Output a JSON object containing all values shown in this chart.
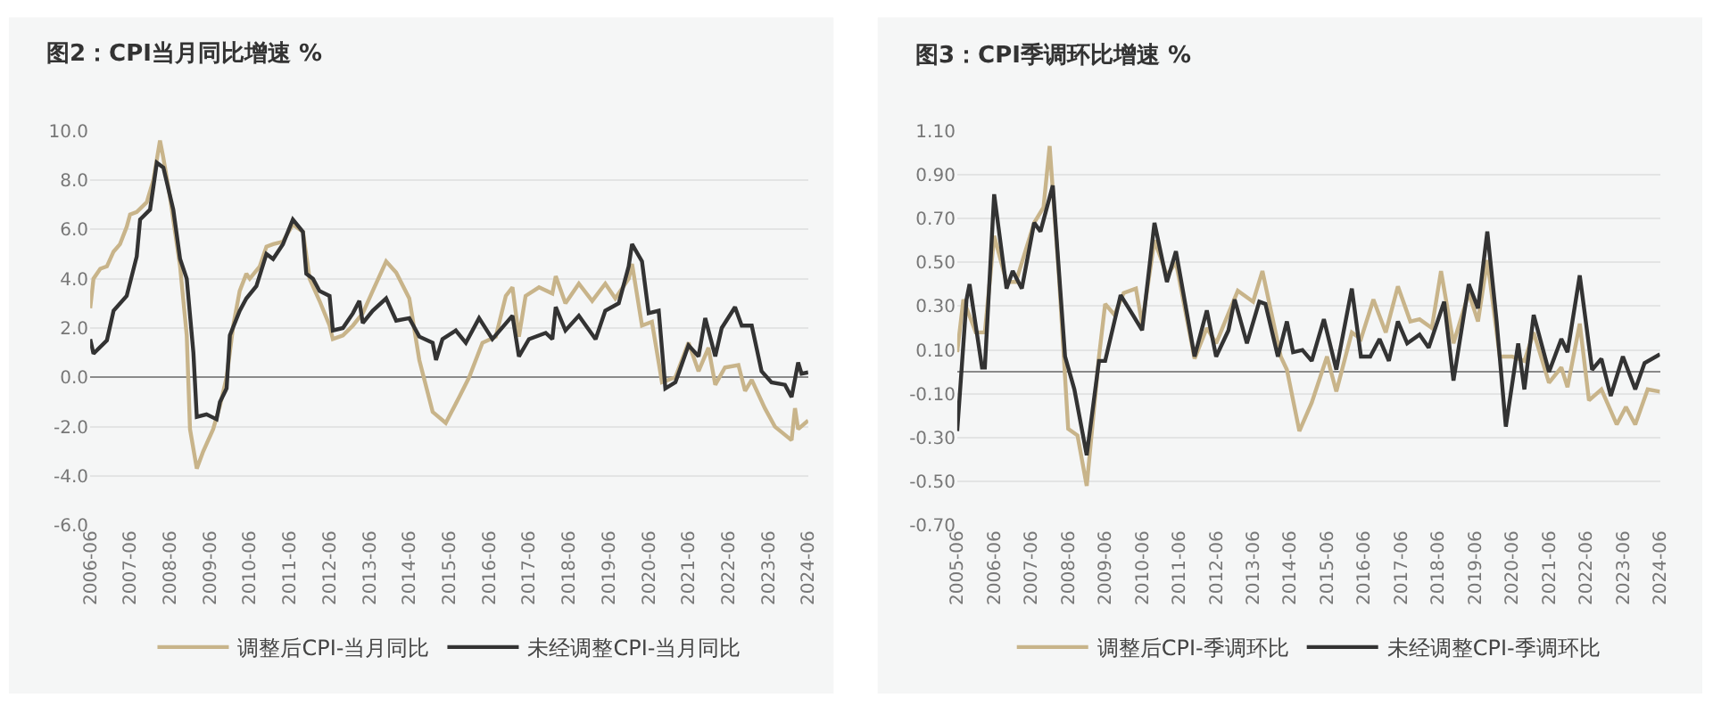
{
  "chart_data": [
    {
      "type": "line",
      "title": "图2：CPI当月同比增速 %",
      "legend": "bottom",
      "grid": "y",
      "marker": "none",
      "line_style": "solid",
      "xlim": [
        "2006-06",
        "2024-06"
      ],
      "ylim": [
        -6,
        10
      ],
      "xticks": [
        "2006-06",
        "2007-06",
        "2008-06",
        "2009-06",
        "2010-06",
        "2011-06",
        "2012-06",
        "2013-06",
        "2014-06",
        "2015-06",
        "2016-06",
        "2017-06",
        "2018-06",
        "2019-06",
        "2020-06",
        "2021-06",
        "2022-06",
        "2023-06",
        "2024-06"
      ],
      "yticks": [
        {
          "value": -6,
          "label": "-6.0"
        },
        {
          "value": -4,
          "label": "-4.0"
        },
        {
          "value": -2,
          "label": "-2.0"
        },
        {
          "value": 0,
          "label": "0.0"
        },
        {
          "value": 2,
          "label": "2.0"
        },
        {
          "value": 4,
          "label": "4.0"
        },
        {
          "value": 6,
          "label": "6.0"
        },
        {
          "value": 8,
          "label": "8.0"
        },
        {
          "value": 10,
          "label": "10.0"
        }
      ],
      "series": [
        {
          "name": "调整后CPI-当月同比",
          "color": "#c8b48a",
          "x": [
            "2006-06",
            "2006-07",
            "2006-09",
            "2006-11",
            "2007-01",
            "2007-03",
            "2007-05",
            "2007-06",
            "2007-08",
            "2007-11",
            "2008-01",
            "2008-03",
            "2008-04",
            "2008-06",
            "2008-09",
            "2008-11",
            "2008-12",
            "2009-02",
            "2009-04",
            "2009-07",
            "2009-09",
            "2009-11",
            "2010-01",
            "2010-03",
            "2010-05",
            "2010-06",
            "2010-09",
            "2010-11",
            "2011-01",
            "2011-04",
            "2011-07",
            "2011-10",
            "2011-12",
            "2012-03",
            "2012-06",
            "2012-07",
            "2012-10",
            "2013-01",
            "2013-04",
            "2013-07",
            "2013-11",
            "2014-02",
            "2014-06",
            "2014-09",
            "2015-01",
            "2015-05",
            "2015-09",
            "2015-12",
            "2016-04",
            "2016-08",
            "2016-11",
            "2017-01",
            "2017-03",
            "2017-05",
            "2017-09",
            "2018-01",
            "2018-02",
            "2018-05",
            "2018-09",
            "2019-01",
            "2019-05",
            "2019-08",
            "2019-12",
            "2020-01",
            "2020-04",
            "2020-07",
            "2020-10",
            "2021-02",
            "2021-06",
            "2021-09",
            "2021-12",
            "2022-02",
            "2022-05",
            "2022-09",
            "2022-11",
            "2023-01",
            "2023-05",
            "2023-08",
            "2024-01",
            "2024-02",
            "2024-03",
            "2024-06"
          ],
          "values": [
            2.8,
            4.0,
            4.4,
            4.5,
            5.1,
            5.4,
            6.1,
            6.6,
            6.7,
            7.1,
            8.0,
            9.6,
            8.9,
            7.3,
            4.5,
            1.7,
            -2.1,
            -3.7,
            -3.0,
            -2.1,
            -1.15,
            0,
            2.1,
            3.5,
            4.2,
            4.0,
            4.5,
            5.3,
            5.4,
            5.5,
            6.2,
            5.9,
            4.0,
            3.1,
            2.1,
            1.55,
            1.7,
            2.1,
            2.6,
            3.5,
            4.7,
            4.25,
            3.2,
            0.7,
            -1.4,
            -1.85,
            -0.8,
            0,
            1.4,
            1.65,
            3.3,
            3.65,
            1.65,
            3.3,
            3.65,
            3.4,
            4.1,
            3.0,
            3.8,
            3.1,
            3.8,
            3.2,
            4.0,
            4.6,
            2.1,
            2.25,
            -0.2,
            0,
            1.4,
            0.25,
            1.2,
            -0.3,
            0.4,
            0.5,
            -0.55,
            -0.1,
            -1.25,
            -2.0,
            -2.55,
            -1.25,
            -2.1,
            -1.75
          ]
        },
        {
          "name": "未经调整CPI-当月同比",
          "color": "#333333",
          "x": [
            "2006-06",
            "2006-07",
            "2006-11",
            "2007-01",
            "2007-05",
            "2007-08",
            "2007-09",
            "2007-12",
            "2008-02",
            "2008-04",
            "2008-07",
            "2008-09",
            "2008-11",
            "2009-01",
            "2009-02",
            "2009-05",
            "2009-08",
            "2009-09",
            "2009-11",
            "2009-12",
            "2010-03",
            "2010-05",
            "2010-08",
            "2010-11",
            "2011-01",
            "2011-04",
            "2011-07",
            "2011-10",
            "2011-11",
            "2012-01",
            "2012-03",
            "2012-06",
            "2012-07",
            "2012-10",
            "2013-01",
            "2013-03",
            "2013-04",
            "2013-07",
            "2013-11",
            "2014-02",
            "2014-06",
            "2014-09",
            "2015-01",
            "2015-02",
            "2015-04",
            "2015-08",
            "2015-11",
            "2016-03",
            "2016-07",
            "2017-01",
            "2017-03",
            "2017-06",
            "2017-11",
            "2018-01",
            "2018-02",
            "2018-05",
            "2018-09",
            "2019-02",
            "2019-05",
            "2019-09",
            "2019-12",
            "2020-01",
            "2020-04",
            "2020-06",
            "2020-09",
            "2020-11",
            "2021-02",
            "2021-06",
            "2021-09",
            "2021-11",
            "2022-02",
            "2022-04",
            "2022-08",
            "2022-10",
            "2023-01",
            "2023-04",
            "2023-07",
            "2023-11",
            "2024-01",
            "2024-03",
            "2024-04",
            "2024-06"
          ],
          "values": [
            1.55,
            0.96,
            1.5,
            2.7,
            3.3,
            4.9,
            6.4,
            6.8,
            8.7,
            8.5,
            6.8,
            4.8,
            4.0,
            1.0,
            -1.6,
            -1.5,
            -1.7,
            -1.0,
            -0.45,
            1.7,
            2.7,
            3.2,
            3.7,
            5.0,
            4.8,
            5.4,
            6.4,
            5.9,
            4.2,
            4.0,
            3.5,
            3.3,
            1.9,
            2.0,
            2.6,
            3.1,
            2.2,
            2.7,
            3.2,
            2.3,
            2.4,
            1.65,
            1.4,
            0.7,
            1.55,
            1.9,
            1.4,
            2.4,
            1.55,
            2.5,
            0.85,
            1.55,
            1.8,
            1.55,
            2.85,
            1.9,
            2.5,
            1.55,
            2.7,
            3.0,
            4.5,
            5.4,
            4.7,
            2.6,
            2.7,
            -0.45,
            -0.2,
            1.3,
            0.85,
            2.4,
            0.85,
            2.0,
            2.85,
            2.1,
            2.1,
            0.25,
            -0.2,
            -0.3,
            -0.8,
            0.6,
            0.15,
            0.2
          ]
        }
      ]
    },
    {
      "type": "line",
      "title": "图3：CPI季调环比增速 %",
      "legend": "bottom",
      "grid": "y",
      "marker": "none",
      "line_style": "solid",
      "xlim": [
        "2005-06",
        "2024-06"
      ],
      "ylim": [
        -0.7,
        1.1
      ],
      "xticks": [
        "2005-06",
        "2006-06",
        "2007-06",
        "2008-06",
        "2009-06",
        "2010-06",
        "2011-06",
        "2012-06",
        "2013-06",
        "2014-06",
        "2015-06",
        "2016-06",
        "2017-06",
        "2018-06",
        "2019-06",
        "2020-06",
        "2021-06",
        "2022-06",
        "2023-06",
        "2024-06"
      ],
      "yticks": [
        {
          "value": -0.7,
          "label": "-0.70"
        },
        {
          "value": -0.5,
          "label": "-0.50"
        },
        {
          "value": -0.3,
          "label": "-0.30"
        },
        {
          "value": -0.1,
          "label": "-0.10"
        },
        {
          "value": 0.1,
          "label": "0.10"
        },
        {
          "value": 0.3,
          "label": "0.30"
        },
        {
          "value": 0.5,
          "label": "0.50"
        },
        {
          "value": 0.7,
          "label": "0.70"
        },
        {
          "value": 0.9,
          "label": "0.90"
        },
        {
          "value": 1.1,
          "label": "1.10"
        }
      ],
      "series": [
        {
          "name": "调整后CPI-季调环比",
          "color": "#c8b48a",
          "x": [
            "2005-06",
            "2005-08",
            "2005-12",
            "2006-03",
            "2006-06",
            "2006-10",
            "2007-01",
            "2007-07",
            "2007-10",
            "2007-12",
            "2008-03",
            "2008-06",
            "2008-09",
            "2008-12",
            "2009-04",
            "2009-06",
            "2009-09",
            "2009-12",
            "2010-04",
            "2010-06",
            "2010-10",
            "2011-02",
            "2011-05",
            "2011-11",
            "2012-03",
            "2012-06",
            "2013-01",
            "2013-06",
            "2013-09",
            "2014-03",
            "2014-05",
            "2014-09",
            "2015-01",
            "2015-06",
            "2015-09",
            "2016-02",
            "2016-05",
            "2016-09",
            "2017-01",
            "2017-05",
            "2017-09",
            "2017-12",
            "2018-04",
            "2018-07",
            "2018-11",
            "2019-04",
            "2019-07",
            "2019-10",
            "2020-02",
            "2020-06",
            "2020-10",
            "2021-01",
            "2021-06",
            "2021-10",
            "2021-12",
            "2022-04",
            "2022-07",
            "2022-11",
            "2023-04",
            "2023-07",
            "2023-10",
            "2024-02",
            "2024-06"
          ],
          "values": [
            0.09,
            0.33,
            0.18,
            0.18,
            0.62,
            0.41,
            0.41,
            0.68,
            0.75,
            1.03,
            0.44,
            -0.26,
            -0.29,
            -0.52,
            0.07,
            0.31,
            0.26,
            0.36,
            0.38,
            0.22,
            0.6,
            0.44,
            0.5,
            0.06,
            0.2,
            0.13,
            0.37,
            0.32,
            0.46,
            0.07,
            0.01,
            -0.27,
            -0.14,
            0.07,
            -0.09,
            0.18,
            0.15,
            0.33,
            0.18,
            0.39,
            0.23,
            0.24,
            0.2,
            0.46,
            0.13,
            0.36,
            0.23,
            0.51,
            0.07,
            0.07,
            0.05,
            0.18,
            -0.05,
            0.02,
            -0.07,
            0.22,
            -0.13,
            -0.08,
            -0.24,
            -0.16,
            -0.24,
            -0.08,
            -0.09
          ]
        },
        {
          "name": "未经调整CPI-季调环比",
          "color": "#333333",
          "x": [
            "2005-06",
            "2005-09",
            "2005-10",
            "2006-02",
            "2006-03",
            "2006-06",
            "2006-10",
            "2006-12",
            "2007-03",
            "2007-07",
            "2007-09",
            "2008-01",
            "2008-05",
            "2008-08",
            "2008-12",
            "2009-04",
            "2009-06",
            "2009-11",
            "2010-03",
            "2010-06",
            "2010-10",
            "2011-02",
            "2011-05",
            "2011-11",
            "2012-03",
            "2012-06",
            "2012-10",
            "2012-12",
            "2013-04",
            "2013-08",
            "2013-10",
            "2014-02",
            "2014-05",
            "2014-07",
            "2014-10",
            "2015-01",
            "2015-05",
            "2015-09",
            "2016-02",
            "2016-05",
            "2016-08",
            "2016-11",
            "2017-02",
            "2017-05",
            "2017-08",
            "2017-12",
            "2018-03",
            "2018-08",
            "2018-11",
            "2019-04",
            "2019-07",
            "2019-10",
            "2020-01",
            "2020-04",
            "2020-08",
            "2020-10",
            "2021-01",
            "2021-06",
            "2021-10",
            "2021-12",
            "2022-04",
            "2022-08",
            "2022-11",
            "2023-02",
            "2023-06",
            "2023-10",
            "2024-01",
            "2024-06"
          ],
          "values": [
            -0.27,
            0.33,
            0.4,
            0.02,
            0.02,
            0.81,
            0.38,
            0.46,
            0.38,
            0.68,
            0.64,
            0.85,
            0.07,
            -0.08,
            -0.38,
            0.05,
            0.05,
            0.35,
            0.26,
            0.19,
            0.68,
            0.41,
            0.55,
            0.07,
            0.28,
            0.07,
            0.19,
            0.33,
            0.13,
            0.32,
            0.31,
            0.07,
            0.23,
            0.09,
            0.1,
            0.05,
            0.24,
            0.01,
            0.38,
            0.07,
            0.07,
            0.15,
            0.05,
            0.23,
            0.13,
            0.17,
            0.11,
            0.32,
            -0.04,
            0.4,
            0.29,
            0.64,
            0.23,
            -0.25,
            0.13,
            -0.08,
            0.26,
            0.0,
            0.15,
            0.09,
            0.44,
            0.01,
            0.06,
            -0.11,
            0.07,
            -0.08,
            0.04,
            0.08
          ]
        }
      ]
    }
  ]
}
